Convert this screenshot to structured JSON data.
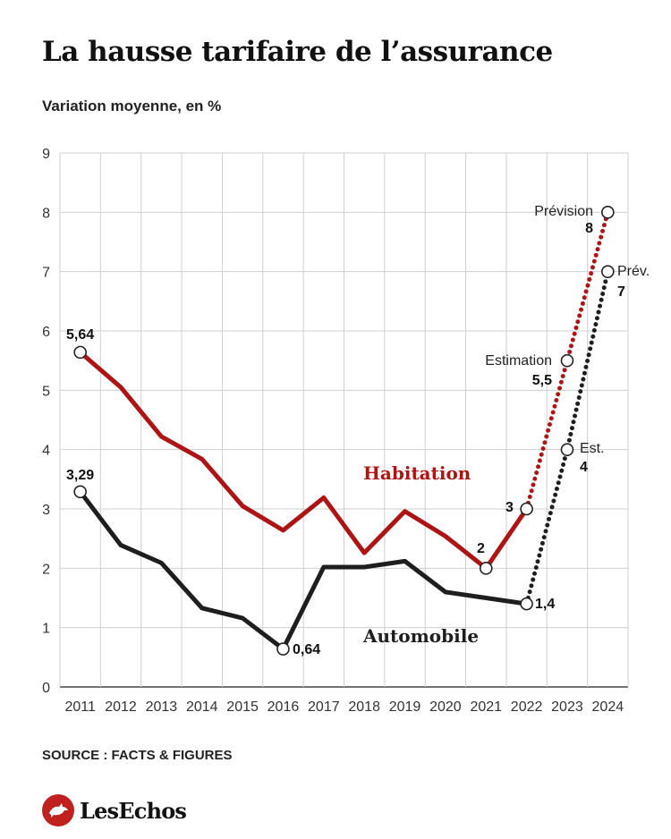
{
  "title": "La hausse tarifaire de l’assurance",
  "subtitle": "Variation moyenne, en %",
  "source": "SOURCE : FACTS & FIGURES",
  "logo_text": "LesEchos",
  "colors": {
    "habitation": "#ad1515",
    "automobile": "#1e1e1e",
    "grid": "#cfcfcf",
    "brand": "#c0211f"
  },
  "chart_data": {
    "type": "line",
    "x": [
      "2011",
      "2012",
      "2013",
      "2014",
      "2015",
      "2016",
      "2017",
      "2018",
      "2019",
      "2020",
      "2021",
      "2022",
      "2023",
      "2024"
    ],
    "ylim": [
      0,
      9
    ],
    "yticks": [
      "0",
      "1",
      "2",
      "3",
      "4",
      "5",
      "6",
      "7",
      "8",
      "9"
    ],
    "grid": true,
    "series": [
      {
        "name": "Habitation",
        "values": [
          5.64,
          5.05,
          4.22,
          3.84,
          3.05,
          2.64,
          3.19,
          2.26,
          2.96,
          2.54,
          2,
          3,
          5.5,
          8
        ],
        "solid_until_index": 11,
        "circle_indices": [
          0,
          10,
          11,
          12,
          13
        ]
      },
      {
        "name": "Automobile",
        "values": [
          3.29,
          2.39,
          2.09,
          1.33,
          1.16,
          0.64,
          2.02,
          2.02,
          2.12,
          1.6,
          1.5,
          1.4,
          4,
          7
        ],
        "solid_until_index": 11,
        "circle_indices": [
          0,
          5,
          11,
          12,
          13
        ]
      }
    ],
    "annotations": [
      {
        "text": "5,64"
      },
      {
        "text": "3,29"
      },
      {
        "text": "0,64"
      },
      {
        "text": "2"
      },
      {
        "text": "3"
      },
      {
        "text": "1,4"
      },
      {
        "text": "Estimation"
      },
      {
        "text": "5,5"
      },
      {
        "text": "Prévision"
      },
      {
        "text": "8"
      },
      {
        "text": "Est."
      },
      {
        "text": "4"
      },
      {
        "text": "Prév."
      },
      {
        "text": "7"
      }
    ]
  }
}
